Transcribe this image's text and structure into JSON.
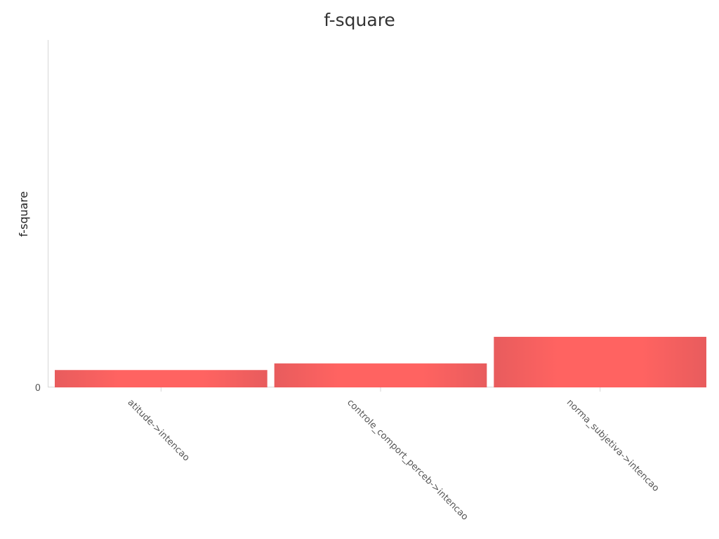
{
  "chart_data": {
    "type": "bar",
    "title": "f-square",
    "xlabel": "",
    "ylabel": "f-square",
    "categories": [
      "atitude->intencao",
      "controle_comport_perceb->intencao",
      "norma_subjetiva->intencao"
    ],
    "values": [
      0.034,
      0.047,
      0.099
    ],
    "ylim": [
      0,
      0.68
    ],
    "yticks": [
      0
    ],
    "grid": false,
    "bar_color": "#ff6361",
    "bar_edge_color": "#e8595a"
  }
}
